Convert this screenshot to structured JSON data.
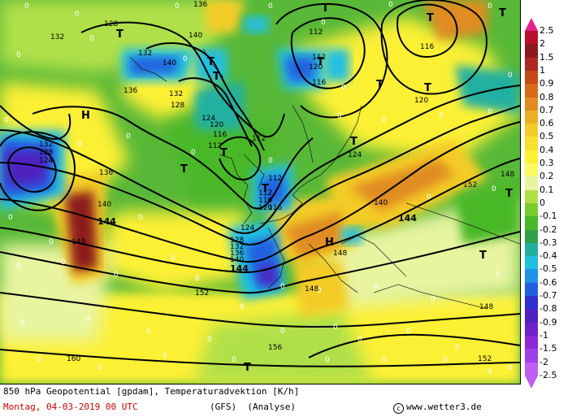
{
  "header": {
    "title": "850 hPa Geopotential [gpdam], Temperaturadvektion [K/h]",
    "date": "Montag, 04-03-2019  00 UTC",
    "model": "(GFS)",
    "mode": "(Analyse)",
    "source": "www.wetter3.de"
  },
  "legend": {
    "labels": [
      "2.5",
      "2",
      "1.5",
      "1",
      "0.9",
      "0.8",
      "0.7",
      "0.6",
      "0.5",
      "0.4",
      "0.3",
      "0.2",
      "0.1",
      "0",
      "-0.1",
      "-0.2",
      "-0.3",
      "-0.4",
      "-0.5",
      "-0.6",
      "-0.7",
      "-0.8",
      "-0.9",
      "-1",
      "-1.5",
      "-2",
      "-2.5"
    ],
    "colors": [
      "#e8208c",
      "#b8102c",
      "#8c1a1a",
      "#b02820",
      "#c84818",
      "#d86a18",
      "#e08c20",
      "#ecb024",
      "#f4cc28",
      "#f8e030",
      "#fcf034",
      "#fcfa60",
      "#e8f4a0",
      "#b0e048",
      "#78cc30",
      "#48b828",
      "#30a04a",
      "#20b0a0",
      "#20c0e0",
      "#2090e8",
      "#2060e0",
      "#3030d0",
      "#5020c0",
      "#7020c8",
      "#8c28d8",
      "#a040e8",
      "#c060f0"
    ]
  },
  "map": {
    "contour_labels": [
      {
        "t": "132"
      },
      {
        "t": "136"
      },
      {
        "t": "128"
      },
      {
        "t": "140"
      },
      {
        "t": "132"
      },
      {
        "t": "140"
      },
      {
        "t": "136"
      },
      {
        "t": "132"
      },
      {
        "t": "128"
      },
      {
        "t": "124"
      },
      {
        "t": "120"
      },
      {
        "t": "116"
      },
      {
        "t": "112"
      },
      {
        "t": "112"
      },
      {
        "t": "112"
      },
      {
        "t": "116"
      },
      {
        "t": "112"
      },
      {
        "t": "116"
      },
      {
        "t": "120"
      },
      {
        "t": "124"
      },
      {
        "t": "128"
      },
      {
        "t": "132"
      },
      {
        "t": "136"
      },
      {
        "t": "140"
      },
      {
        "t": "144"
      },
      {
        "t": "148"
      },
      {
        "t": "152"
      },
      {
        "t": "156"
      },
      {
        "t": "160"
      },
      {
        "t": "136"
      },
      {
        "t": "132"
      },
      {
        "t": "128"
      },
      {
        "t": "124"
      },
      {
        "t": "140"
      },
      {
        "t": "144"
      },
      {
        "t": "148"
      },
      {
        "t": "152"
      },
      {
        "t": "148"
      },
      {
        "t": "144"
      },
      {
        "t": "140"
      },
      {
        "t": "148"
      },
      {
        "t": "152"
      },
      {
        "t": "124"
      },
      {
        "t": "116"
      },
      {
        "t": "112"
      },
      {
        "t": "120"
      },
      {
        "t": "148"
      },
      {
        "t": "112"
      },
      {
        "t": "116"
      },
      {
        "t": "120"
      }
    ],
    "centers": [
      {
        "t": "T"
      },
      {
        "t": "T"
      },
      {
        "t": "T"
      },
      {
        "t": "T"
      },
      {
        "t": "T"
      },
      {
        "t": "T"
      },
      {
        "t": "T"
      },
      {
        "t": "T"
      },
      {
        "t": "T"
      },
      {
        "t": "T"
      },
      {
        "t": "T"
      },
      {
        "t": "T"
      },
      {
        "t": "T"
      },
      {
        "t": "H"
      },
      {
        "t": "H"
      },
      {
        "t": "T"
      },
      {
        "t": "T"
      },
      {
        "t": "T"
      }
    ]
  }
}
